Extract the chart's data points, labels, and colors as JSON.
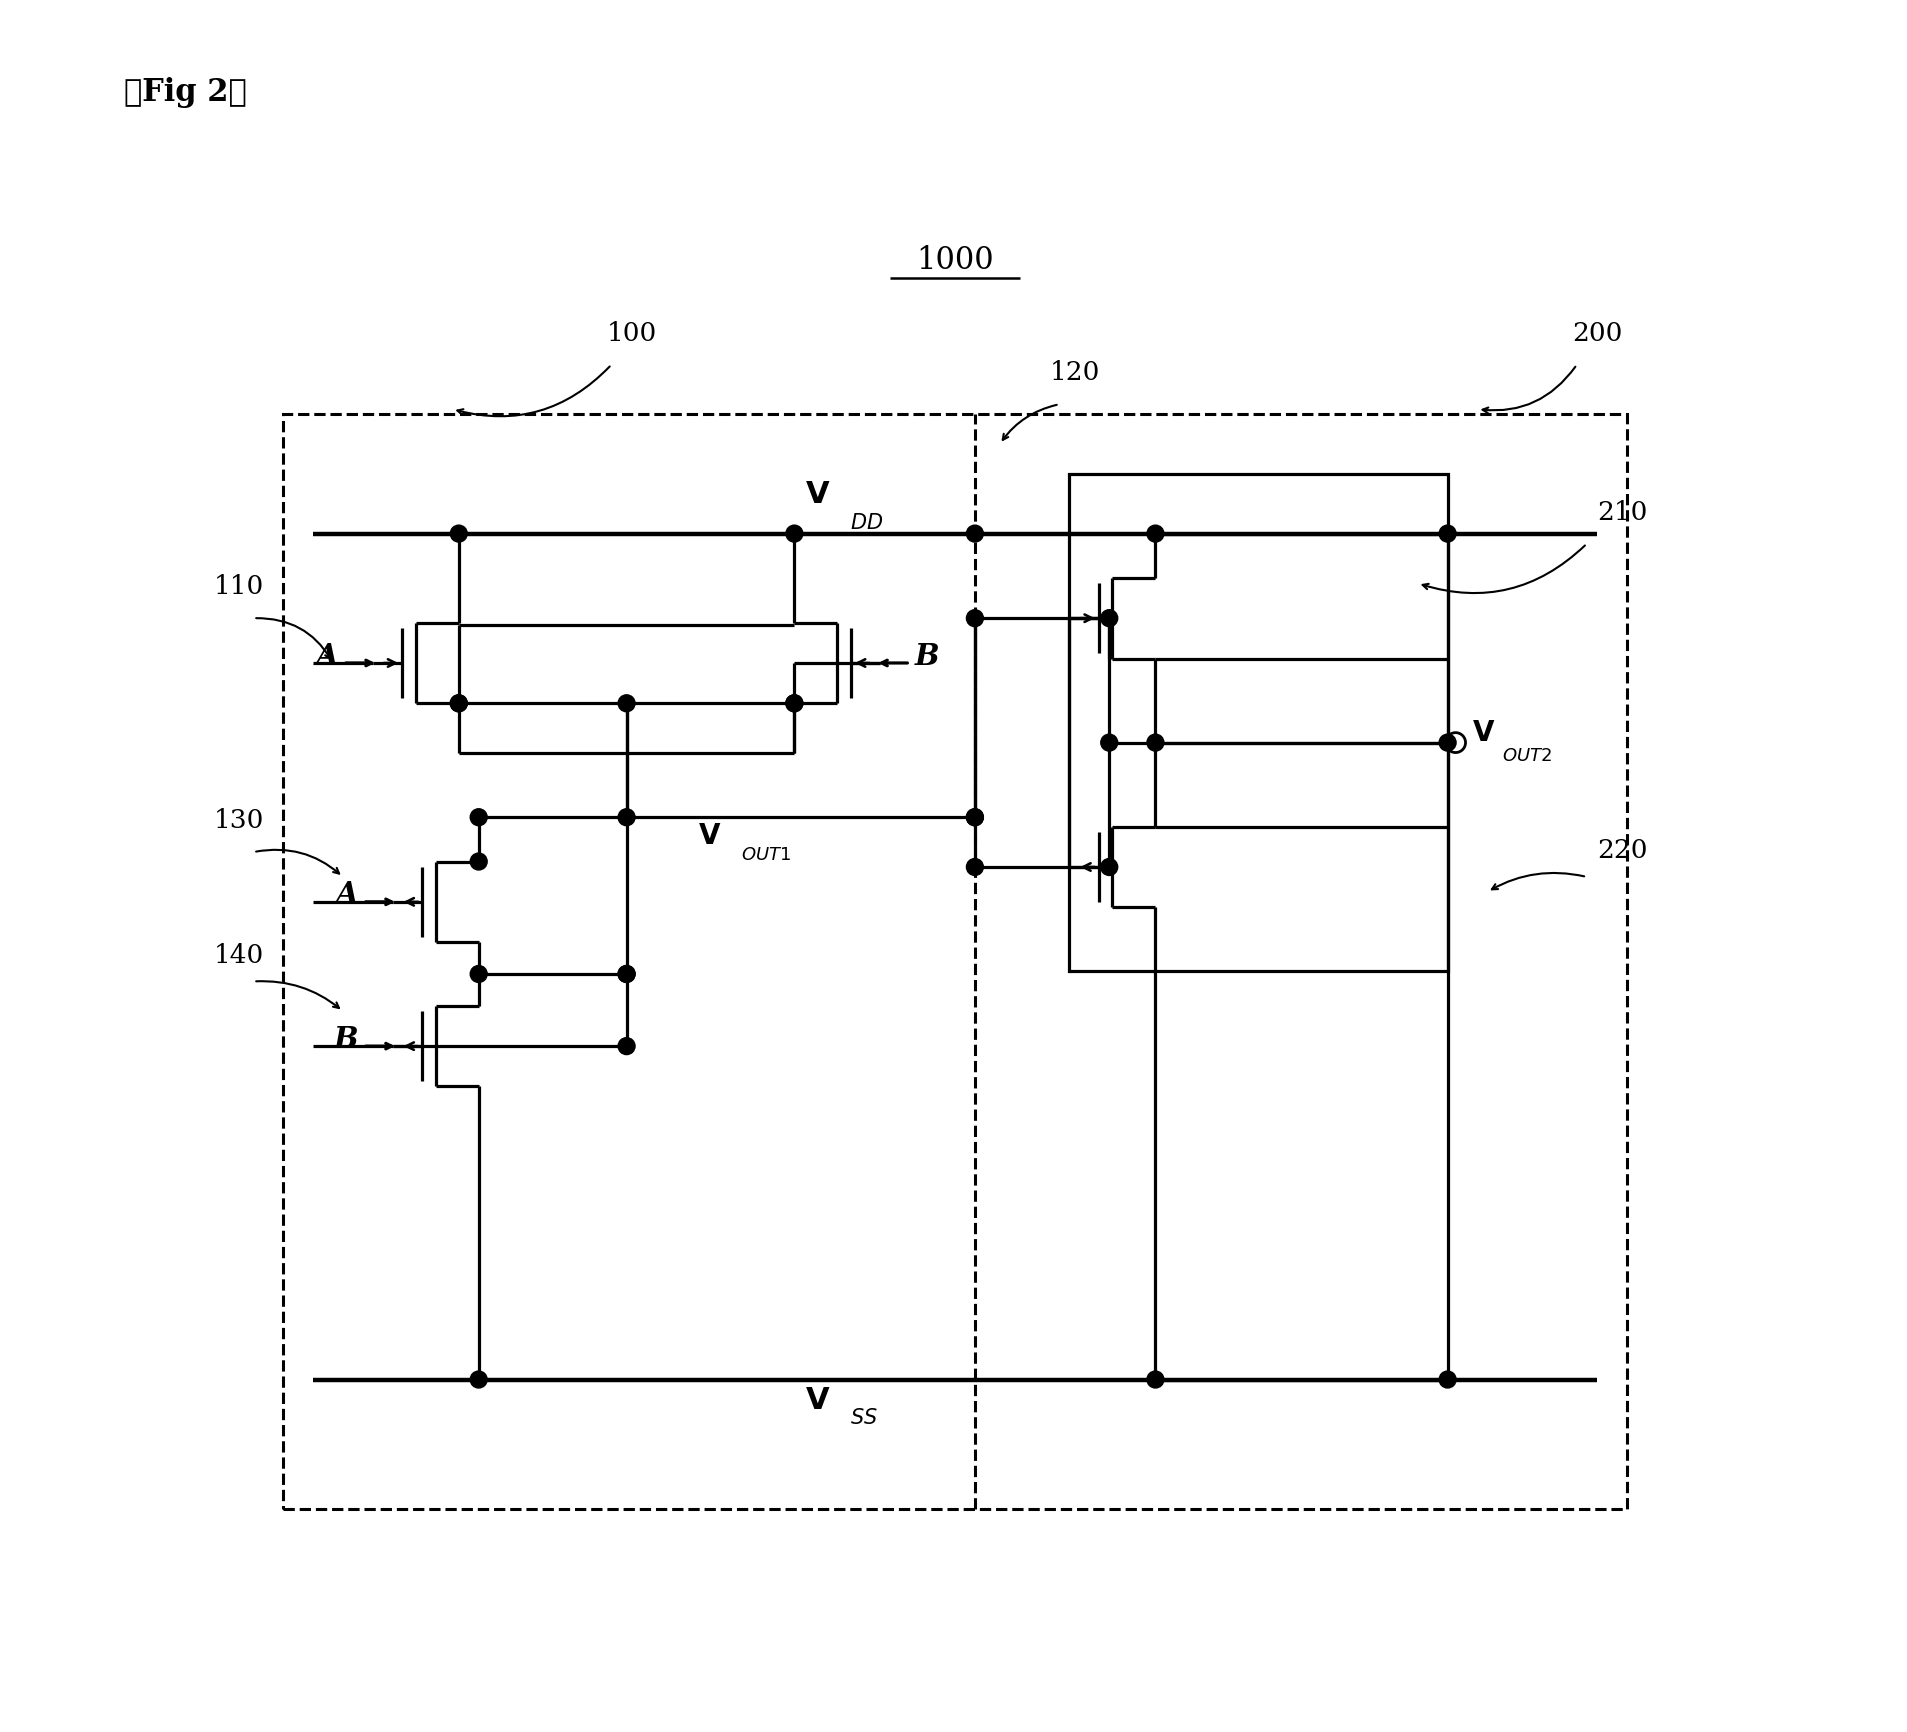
{
  "title": "【Fig 2】",
  "label_1000": "1000",
  "label_100": "100",
  "label_200": "200",
  "label_110": "110",
  "label_120": "120",
  "label_130": "130",
  "label_140": "140",
  "label_210": "210",
  "label_220": "220",
  "label_A": "A",
  "label_B": "B",
  "bg_color": "#ffffff"
}
